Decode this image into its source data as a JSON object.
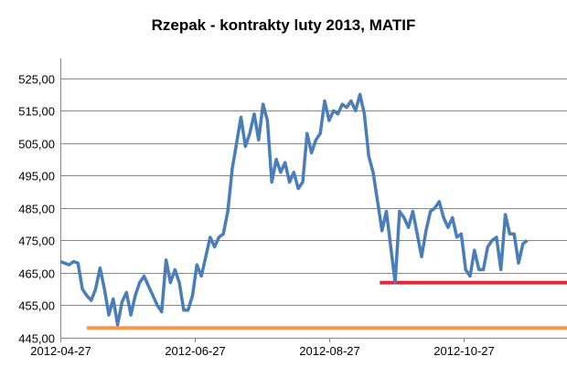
{
  "chart_data": {
    "type": "line",
    "title": "Rzepak - kontrakty luty 2013, MATIF",
    "xlabel": "",
    "ylabel": "",
    "ylim": [
      445,
      530
    ],
    "y_ticks": [
      "525,00",
      "515,00",
      "505,00",
      "495,00",
      "485,00",
      "475,00",
      "465,00",
      "455,00",
      "445,00"
    ],
    "y_tick_values": [
      525,
      515,
      505,
      495,
      485,
      475,
      465,
      455,
      445
    ],
    "x_ticks": [
      "2012-04-27",
      "2012-06-27",
      "2012-08-27",
      "2012-10-27"
    ],
    "x_tick_values": [
      "2012-04-27",
      "2012-06-27",
      "2012-08-27",
      "2012-10-27"
    ],
    "xlim": [
      "2012-04-27",
      "2012-12-13"
    ],
    "grid": "horizontal",
    "legend": "none",
    "series": [
      {
        "color": "#4a7ebb",
        "points": [
          [
            "2012-04-27",
            468.5
          ],
          [
            "2012-04-29",
            468
          ],
          [
            "2012-05-01",
            467.5
          ],
          [
            "2012-05-03",
            468.5
          ],
          [
            "2012-05-05",
            468
          ],
          [
            "2012-05-07",
            460
          ],
          [
            "2012-05-09",
            458
          ],
          [
            "2012-05-11",
            456.5
          ],
          [
            "2012-05-13",
            460
          ],
          [
            "2012-05-15",
            466.5
          ],
          [
            "2012-05-17",
            460
          ],
          [
            "2012-05-19",
            452
          ],
          [
            "2012-05-21",
            457
          ],
          [
            "2012-05-23",
            449
          ],
          [
            "2012-05-25",
            456
          ],
          [
            "2012-05-27",
            459
          ],
          [
            "2012-05-29",
            452
          ],
          [
            "2012-05-31",
            458
          ],
          [
            "2012-06-02",
            462
          ],
          [
            "2012-06-04",
            464
          ],
          [
            "2012-06-06",
            461
          ],
          [
            "2012-06-08",
            458
          ],
          [
            "2012-06-10",
            455
          ],
          [
            "2012-06-12",
            453
          ],
          [
            "2012-06-14",
            469
          ],
          [
            "2012-06-16",
            462
          ],
          [
            "2012-06-18",
            466
          ],
          [
            "2012-06-20",
            462
          ],
          [
            "2012-06-22",
            453.5
          ],
          [
            "2012-06-24",
            453.5
          ],
          [
            "2012-06-26",
            458
          ],
          [
            "2012-06-28",
            467.5
          ],
          [
            "2012-06-30",
            464
          ],
          [
            "2012-07-02",
            470
          ],
          [
            "2012-07-04",
            476
          ],
          [
            "2012-07-06",
            473
          ],
          [
            "2012-07-08",
            476
          ],
          [
            "2012-07-10",
            477
          ],
          [
            "2012-07-12",
            484
          ],
          [
            "2012-07-14",
            497
          ],
          [
            "2012-07-16",
            505
          ],
          [
            "2012-07-18",
            513
          ],
          [
            "2012-07-20",
            504
          ],
          [
            "2012-07-22",
            508
          ],
          [
            "2012-07-24",
            514
          ],
          [
            "2012-07-26",
            506
          ],
          [
            "2012-07-28",
            517
          ],
          [
            "2012-07-30",
            512
          ],
          [
            "2012-08-01",
            493
          ],
          [
            "2012-08-03",
            500
          ],
          [
            "2012-08-05",
            496
          ],
          [
            "2012-08-07",
            499
          ],
          [
            "2012-08-09",
            493
          ],
          [
            "2012-08-11",
            496
          ],
          [
            "2012-08-13",
            491
          ],
          [
            "2012-08-15",
            493
          ],
          [
            "2012-08-17",
            508
          ],
          [
            "2012-08-19",
            502
          ],
          [
            "2012-08-21",
            506
          ],
          [
            "2012-08-23",
            508
          ],
          [
            "2012-08-25",
            518
          ],
          [
            "2012-08-27",
            512
          ],
          [
            "2012-08-29",
            515
          ],
          [
            "2012-08-31",
            514
          ],
          [
            "2012-09-02",
            517
          ],
          [
            "2012-09-04",
            516
          ],
          [
            "2012-09-06",
            518
          ],
          [
            "2012-09-08",
            515
          ],
          [
            "2012-09-10",
            520
          ],
          [
            "2012-09-12",
            514
          ],
          [
            "2012-09-14",
            501
          ],
          [
            "2012-09-16",
            496
          ],
          [
            "2012-09-18",
            487
          ],
          [
            "2012-09-20",
            478
          ],
          [
            "2012-09-22",
            484
          ],
          [
            "2012-09-24",
            473
          ],
          [
            "2012-09-26",
            462
          ],
          [
            "2012-09-28",
            484
          ],
          [
            "2012-09-30",
            482
          ],
          [
            "2012-10-02",
            479
          ],
          [
            "2012-10-04",
            484
          ],
          [
            "2012-10-06",
            477
          ],
          [
            "2012-10-08",
            470
          ],
          [
            "2012-10-10",
            478
          ],
          [
            "2012-10-12",
            484
          ],
          [
            "2012-10-14",
            485
          ],
          [
            "2012-10-16",
            487
          ],
          [
            "2012-10-18",
            482
          ],
          [
            "2012-10-20",
            479
          ],
          [
            "2012-10-22",
            482
          ],
          [
            "2012-10-24",
            476
          ],
          [
            "2012-10-26",
            477
          ],
          [
            "2012-10-28",
            466
          ],
          [
            "2012-10-30",
            464
          ],
          [
            "2012-11-01",
            472
          ],
          [
            "2012-11-03",
            466
          ],
          [
            "2012-11-05",
            466
          ],
          [
            "2012-11-07",
            473
          ],
          [
            "2012-11-09",
            475
          ],
          [
            "2012-11-11",
            476
          ],
          [
            "2012-11-13",
            466
          ],
          [
            "2012-11-15",
            483
          ],
          [
            "2012-11-17",
            477
          ],
          [
            "2012-11-19",
            477
          ],
          [
            "2012-11-21",
            468
          ],
          [
            "2012-11-23",
            474
          ],
          [
            "2012-11-25",
            475
          ]
        ]
      },
      {
        "color": "#f79646",
        "points": [
          [
            "2012-05-09",
            448
          ],
          [
            "2012-12-13",
            448
          ]
        ]
      },
      {
        "color": "#e0283c",
        "points": [
          [
            "2012-09-19",
            462
          ],
          [
            "2012-12-13",
            462
          ]
        ]
      }
    ]
  }
}
